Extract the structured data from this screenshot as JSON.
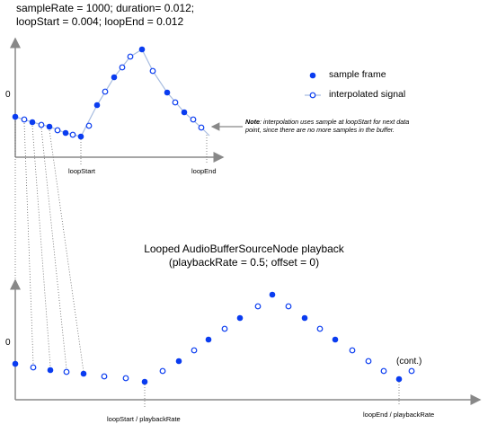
{
  "header": {
    "line1": "sampleRate = 1000; duration= 0.012;",
    "line2": "loopStart = 0.004; loopEnd = 0.012"
  },
  "legend": {
    "sample_frame": "sample frame",
    "interpolated_signal": "interpolated signal"
  },
  "note": {
    "bold": "Note",
    "text": ": interpolation uses sample at loopStart for next data point, since there are no more samples in the buffer."
  },
  "top_graph": {
    "zero_label": "0",
    "loop_start_label": "loopStart",
    "loop_end_label": "loopEnd"
  },
  "bottom_graph": {
    "title_line1": "Looped AudioBufferSourceNode playback",
    "title_line2": "(playbackRate = 0.5; offset = 0)",
    "zero_label": "0",
    "cont_label": "(cont.)",
    "loop_start_label": "loopStart / playbackRate",
    "loop_end_label": "loopEnd / playbackRate"
  },
  "colors": {
    "sample": "#0a3cf0",
    "line": "#a7bce0",
    "axis": "#888888",
    "dotted": "#666666"
  }
}
